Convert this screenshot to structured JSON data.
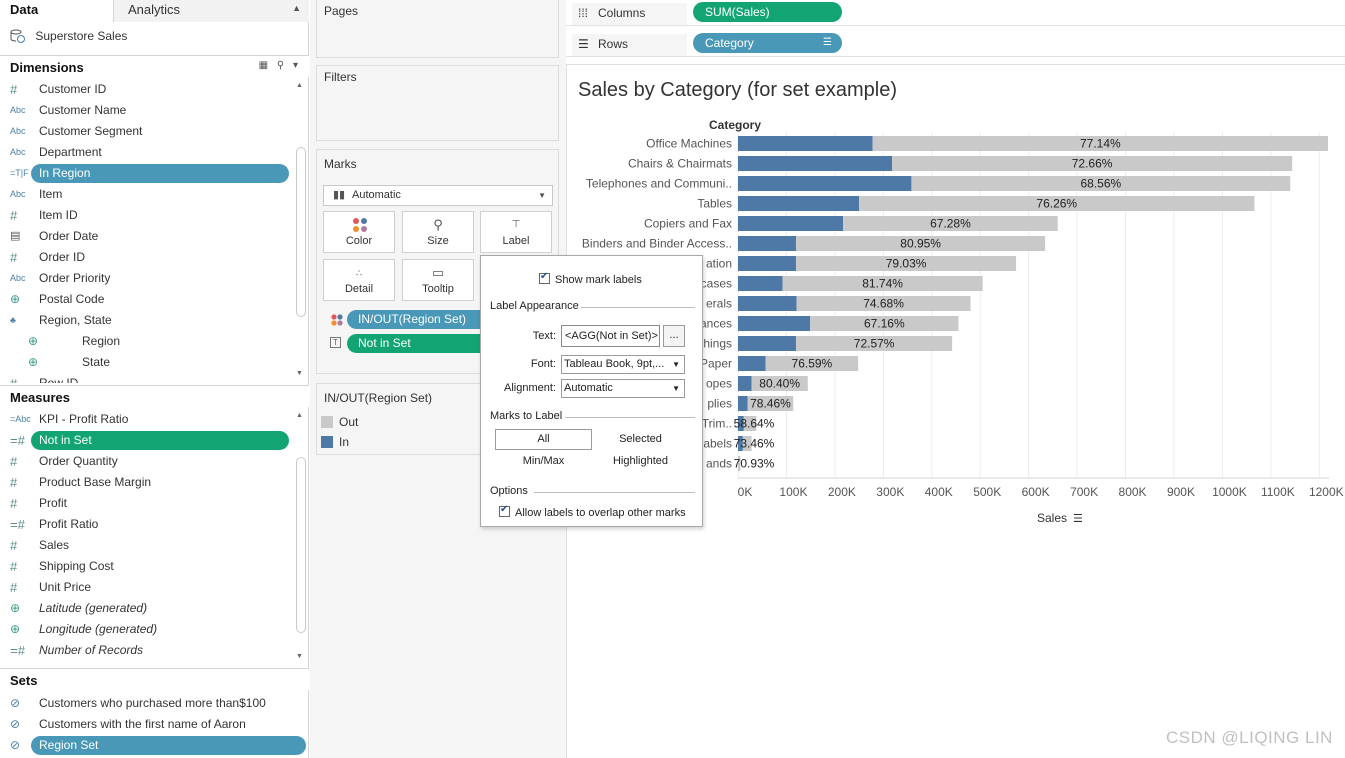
{
  "tabs": {
    "data": "Data",
    "analytics": "Analytics"
  },
  "datasource": "Superstore Sales",
  "dimensions": {
    "title": "Dimensions",
    "items": [
      {
        "icon": "#",
        "label": "Customer ID",
        "type": "hash"
      },
      {
        "icon": "Abc",
        "label": "Customer Name",
        "type": "abc"
      },
      {
        "icon": "Abc",
        "label": "Customer Segment",
        "type": "abc"
      },
      {
        "icon": "Abc",
        "label": "Department",
        "type": "abc"
      },
      {
        "icon": "=T|F",
        "label": "In Region",
        "type": "bool",
        "pill": "blue"
      },
      {
        "icon": "Abc",
        "label": "Item",
        "type": "abc"
      },
      {
        "icon": "#",
        "label": "Item ID",
        "type": "hash"
      },
      {
        "icon": "▤",
        "label": "Order Date",
        "type": "cal"
      },
      {
        "icon": "#",
        "label": "Order ID",
        "type": "hash"
      },
      {
        "icon": "Abc",
        "label": "Order Priority",
        "type": "abc"
      },
      {
        "icon": "⊕",
        "label": "Postal Code",
        "type": "globe"
      },
      {
        "icon": "♣",
        "label": "Region, State",
        "type": "hier"
      },
      {
        "icon": "⊕",
        "label": "Region",
        "type": "globe",
        "indent": true
      },
      {
        "icon": "⊕",
        "label": "State",
        "type": "globe",
        "indent": true
      },
      {
        "icon": "#",
        "label": "Row ID",
        "type": "hash"
      }
    ]
  },
  "measures": {
    "title": "Measures",
    "items": [
      {
        "icon": "=Abc",
        "label": "KPI - Profit Ratio",
        "type": "abc"
      },
      {
        "icon": "=#",
        "label": "Not in Set",
        "type": "hash",
        "pill": "green"
      },
      {
        "icon": "#",
        "label": "Order Quantity",
        "type": "hash"
      },
      {
        "icon": "#",
        "label": "Product Base Margin",
        "type": "hash"
      },
      {
        "icon": "#",
        "label": "Profit",
        "type": "hash"
      },
      {
        "icon": "=#",
        "label": "Profit Ratio",
        "type": "hash"
      },
      {
        "icon": "#",
        "label": "Sales",
        "type": "hash"
      },
      {
        "icon": "#",
        "label": "Shipping Cost",
        "type": "hash"
      },
      {
        "icon": "#",
        "label": "Unit Price",
        "type": "hash"
      },
      {
        "icon": "⊕",
        "label": "Latitude (generated)",
        "type": "globe",
        "italic": true
      },
      {
        "icon": "⊕",
        "label": "Longitude (generated)",
        "type": "globe",
        "italic": true
      },
      {
        "icon": "=#",
        "label": "Number of Records",
        "type": "hash",
        "italic": true
      }
    ]
  },
  "sets": {
    "title": "Sets",
    "items": [
      {
        "label": "Customers who purchased more than$100"
      },
      {
        "label": "Customers with the first name of Aaron"
      },
      {
        "label": "Region Set",
        "pill": "blue"
      }
    ]
  },
  "shelves": {
    "pages": "Pages",
    "filters": "Filters",
    "marks": "Marks",
    "mark_type": "Automatic",
    "buttons": {
      "color": "Color",
      "size": "Size",
      "label": "Label",
      "detail": "Detail",
      "tooltip": "Tooltip"
    },
    "mark_pills": {
      "inout": "IN/OUT(Region Set)",
      "notinset": "Not in Set"
    },
    "columns_title": "Columns",
    "rows_title": "Rows",
    "columns_pill": "SUM(Sales)",
    "rows_pill": "Category"
  },
  "legend": {
    "title": "IN/OUT(Region Set)",
    "items": [
      {
        "label": "Out",
        "color": "#c9c9c9"
      },
      {
        "label": "In",
        "color": "#4e79a7"
      }
    ]
  },
  "label_popup": {
    "show_labels": "Show mark labels",
    "appearance_title": "Label Appearance",
    "text_label": "Text:",
    "text_value": "<AGG(Not in Set)>",
    "more_button": "...",
    "font_label": "Font:",
    "font_value": "Tableau Book, 9pt,...",
    "alignment_label": "Alignment:",
    "alignment_value": "Automatic",
    "marks_title": "Marks to Label",
    "opt_all": "All",
    "opt_selected": "Selected",
    "opt_minmax": "Min/Max",
    "opt_highlighted": "Highlighted",
    "options_title": "Options",
    "overlap": "Allow labels to overlap other marks"
  },
  "chart_data": {
    "type": "bar",
    "title": "Sales by Category (for set example)",
    "category_header": "Category",
    "xlabel": "Sales",
    "xlim": [
      0,
      1220000
    ],
    "xticks": [
      "0K",
      "100K",
      "200K",
      "300K",
      "400K",
      "500K",
      "600K",
      "700K",
      "800K",
      "900K",
      "1000K",
      "1100K",
      "1200K"
    ],
    "colors": {
      "in": "#4e79a7",
      "out": "#c9c9c9"
    },
    "categories": [
      "Office Machines",
      "Chairs & Chairmats",
      "Telephones and Communi..",
      "Tables",
      "Copiers and Fax",
      "Binders and Binder Access..",
      "ation",
      "cases",
      "erals",
      "ances",
      "hings",
      "Paper",
      "opes",
      "plies",
      "Trim..",
      "abels",
      "ands"
    ],
    "series": [
      {
        "name": "In",
        "values": [
          278000,
          318000,
          358000,
          250000,
          217000,
          120000,
          120000,
          92000,
          121000,
          149000,
          120000,
          57000,
          28000,
          20000,
          12000,
          10000,
          0
        ]
      },
      {
        "name": "Out",
        "values": [
          940000,
          826000,
          782000,
          816000,
          443000,
          514000,
          454000,
          413000,
          359000,
          306000,
          322000,
          191000,
          116000,
          94000,
          26000,
          18000,
          5000
        ]
      }
    ],
    "labels": [
      "77.14%",
      "72.66%",
      "68.56%",
      "76.26%",
      "67.28%",
      "80.95%",
      "79.03%",
      "81.74%",
      "74.68%",
      "67.16%",
      "72.57%",
      "76.59%",
      "80.40%",
      "78.46%",
      "58.64%",
      "73.46%",
      "70.93%"
    ]
  },
  "watermark": "CSDN @LIQING LIN"
}
